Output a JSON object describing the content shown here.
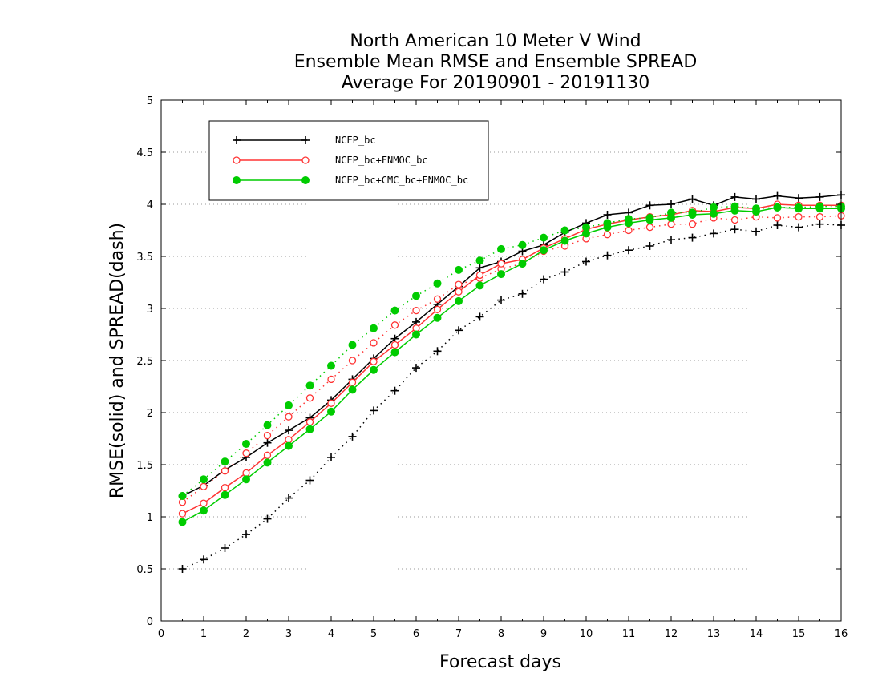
{
  "chart_data": {
    "type": "line",
    "title": [
      "North American 10 Meter V Wind",
      "Ensemble Mean RMSE and Ensemble SPREAD",
      "Average For 20190901 - 20191130"
    ],
    "xlabel": "Forecast days",
    "ylabel": "RMSE(solid) and SPREAD(dash)",
    "xlim": [
      0,
      16
    ],
    "ylim": [
      0,
      5
    ],
    "xticks": [
      "0",
      "1",
      "2",
      "3",
      "4",
      "5",
      "6",
      "7",
      "8",
      "9",
      "10",
      "11",
      "12",
      "13",
      "14",
      "15",
      "16"
    ],
    "yticks": [
      "0",
      "0.5",
      "1",
      "1.5",
      "2",
      "2.5",
      "3",
      "3.5",
      "4",
      "4.5",
      "5"
    ],
    "grid": "horizontal dotted",
    "legend_position": "top-left",
    "x": [
      0.5,
      1,
      1.5,
      2,
      2.5,
      3,
      3.5,
      4,
      4.5,
      5,
      5.5,
      6,
      6.5,
      7,
      7.5,
      8,
      8.5,
      9,
      9.5,
      10,
      10.5,
      11,
      11.5,
      12,
      12.5,
      13,
      13.5,
      14,
      14.5,
      15,
      15.5,
      16
    ],
    "series": [
      {
        "name": "NCEP_bc",
        "color": "#000000",
        "marker": "plus",
        "rmse": [
          1.2,
          1.3,
          1.45,
          1.57,
          1.71,
          1.83,
          1.95,
          2.12,
          2.32,
          2.52,
          2.71,
          2.87,
          3.04,
          3.21,
          3.39,
          3.45,
          3.55,
          3.61,
          3.73,
          3.82,
          3.9,
          3.92,
          3.99,
          4.0,
          4.05,
          3.99,
          4.07,
          4.05,
          4.08,
          4.06,
          4.07,
          4.09
        ],
        "spread": [
          0.5,
          0.59,
          0.7,
          0.83,
          0.98,
          1.18,
          1.35,
          1.57,
          1.77,
          2.02,
          2.21,
          2.43,
          2.59,
          2.79,
          2.92,
          3.08,
          3.14,
          3.28,
          3.35,
          3.45,
          3.51,
          3.56,
          3.6,
          3.66,
          3.68,
          3.72,
          3.76,
          3.74,
          3.8,
          3.78,
          3.81,
          3.8
        ]
      },
      {
        "name": "NCEP_bc+FNMOC_bc",
        "color": "#ff3333",
        "marker": "open-circle",
        "rmse": [
          1.03,
          1.13,
          1.28,
          1.42,
          1.59,
          1.74,
          1.91,
          2.09,
          2.29,
          2.49,
          2.65,
          2.81,
          2.99,
          3.16,
          3.32,
          3.43,
          3.47,
          3.58,
          3.67,
          3.76,
          3.81,
          3.85,
          3.88,
          3.9,
          3.94,
          3.93,
          3.97,
          3.96,
          4.0,
          3.99,
          3.99,
          3.99
        ],
        "spread": [
          1.14,
          1.29,
          1.44,
          1.61,
          1.78,
          1.96,
          2.14,
          2.32,
          2.5,
          2.67,
          2.84,
          2.98,
          3.09,
          3.23,
          3.29,
          3.38,
          3.43,
          3.55,
          3.6,
          3.67,
          3.71,
          3.75,
          3.78,
          3.81,
          3.81,
          3.87,
          3.85,
          3.88,
          3.87,
          3.88,
          3.88,
          3.89
        ]
      },
      {
        "name": "NCEP_bc+CMC_bc+FNMOC_bc",
        "color": "#00cc00",
        "marker": "filled-circle",
        "rmse": [
          0.95,
          1.06,
          1.21,
          1.36,
          1.52,
          1.68,
          1.84,
          2.01,
          2.22,
          2.41,
          2.58,
          2.75,
          2.91,
          3.07,
          3.22,
          3.33,
          3.43,
          3.56,
          3.65,
          3.72,
          3.78,
          3.82,
          3.85,
          3.87,
          3.9,
          3.91,
          3.94,
          3.93,
          3.97,
          3.96,
          3.96,
          3.96
        ],
        "spread": [
          1.2,
          1.36,
          1.53,
          1.7,
          1.88,
          2.07,
          2.26,
          2.45,
          2.65,
          2.81,
          2.98,
          3.12,
          3.24,
          3.37,
          3.46,
          3.57,
          3.61,
          3.68,
          3.75,
          3.78,
          3.82,
          3.86,
          3.87,
          3.92,
          3.92,
          3.97,
          3.98,
          3.96,
          3.97,
          3.97,
          3.98,
          3.98
        ]
      }
    ]
  },
  "colors": {
    "background": "#ffffff",
    "axis": "#000000",
    "grid": "#999999"
  }
}
